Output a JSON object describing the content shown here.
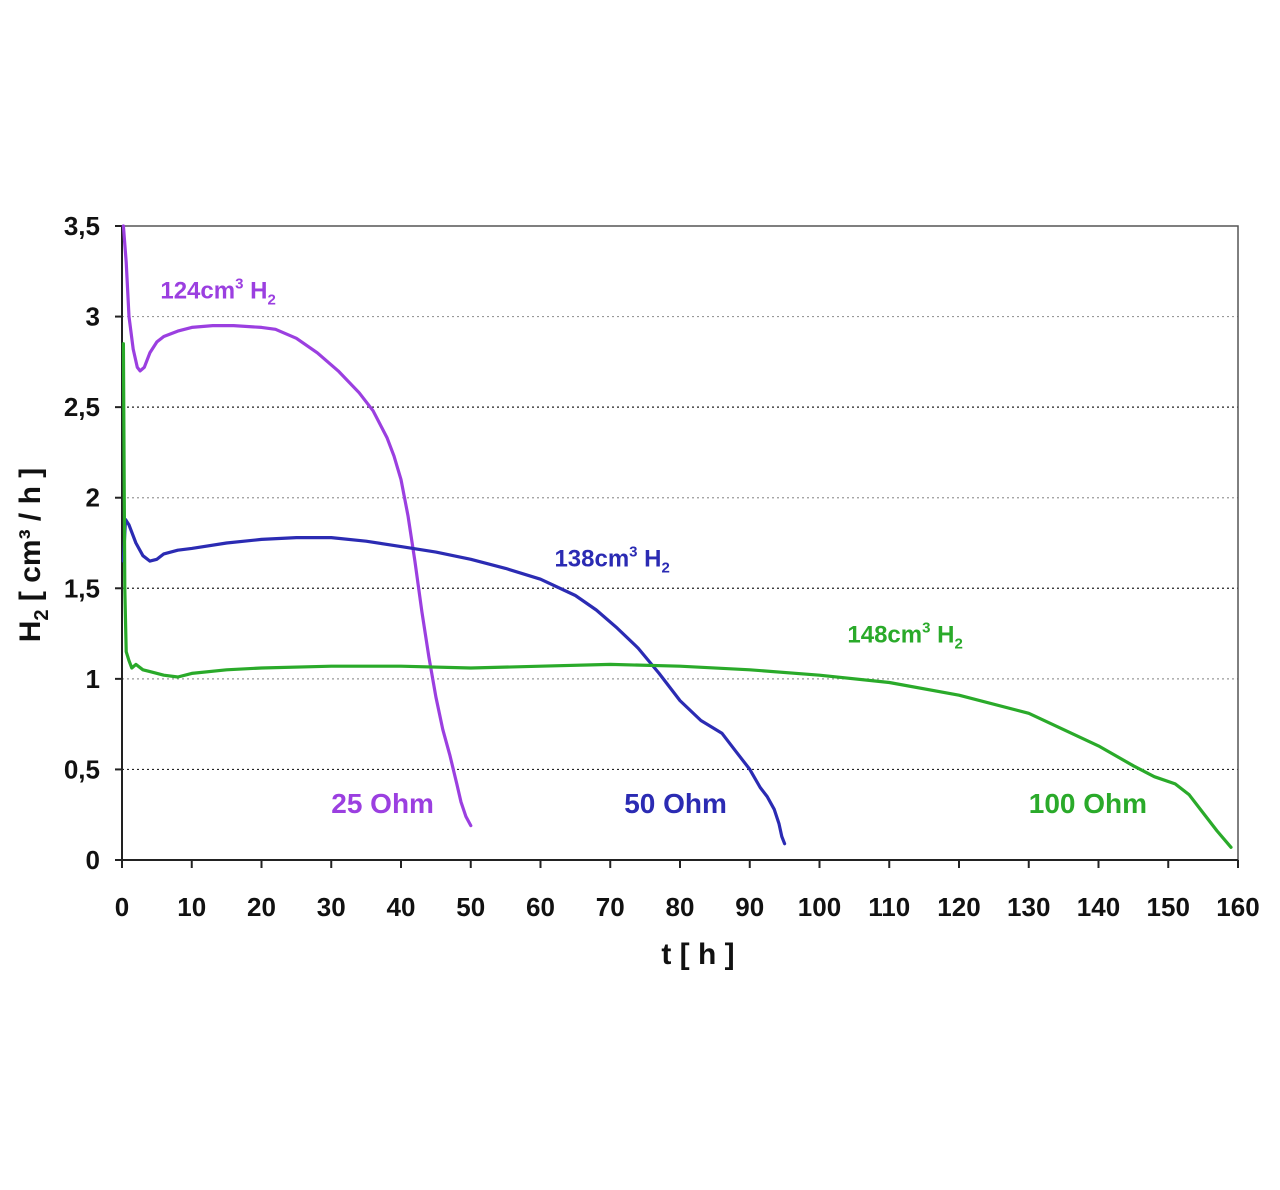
{
  "chart_data": {
    "type": "line",
    "xlabel": "t [ h ]",
    "ylabel_main": "H",
    "ylabel_sub": "2",
    "ylabel_rest": " [ cm³ / h ]",
    "xlim": [
      0,
      160
    ],
    "ylim": [
      0,
      3.5
    ],
    "x_ticks": [
      0,
      10,
      20,
      30,
      40,
      50,
      60,
      70,
      80,
      90,
      100,
      110,
      120,
      130,
      140,
      150,
      160
    ],
    "x_tick_labels": [
      "0",
      "10",
      "20",
      "30",
      "40",
      "50",
      "60",
      "70",
      "80",
      "90",
      "100",
      "110",
      "120",
      "130",
      "140",
      "150",
      "160"
    ],
    "y_ticks": [
      0,
      0.5,
      1,
      1.5,
      2,
      2.5,
      3,
      3.5
    ],
    "y_tick_labels": [
      "0",
      "0,5",
      "1",
      "1,5",
      "2",
      "2,5",
      "3",
      "3,5"
    ],
    "grid": "horizontal dotted",
    "series": [
      {
        "name": "25 Ohm",
        "color": "#9b3fe0",
        "annotation": {
          "main": "124cm",
          "sup": "3",
          "gas": " H",
          "sub": "2",
          "at": [
            5.5,
            3.1
          ]
        },
        "label_at": [
          30,
          0.26
        ],
        "points": [
          [
            0.2,
            3.5
          ],
          [
            0.6,
            3.3
          ],
          [
            1.0,
            3.0
          ],
          [
            1.6,
            2.82
          ],
          [
            2.2,
            2.72
          ],
          [
            2.6,
            2.7
          ],
          [
            3.2,
            2.72
          ],
          [
            4,
            2.8
          ],
          [
            5,
            2.86
          ],
          [
            6,
            2.89
          ],
          [
            8,
            2.92
          ],
          [
            10,
            2.94
          ],
          [
            13,
            2.95
          ],
          [
            16,
            2.95
          ],
          [
            20,
            2.94
          ],
          [
            22,
            2.93
          ],
          [
            25,
            2.88
          ],
          [
            28,
            2.8
          ],
          [
            31,
            2.7
          ],
          [
            34,
            2.58
          ],
          [
            36,
            2.48
          ],
          [
            38,
            2.33
          ],
          [
            39,
            2.23
          ],
          [
            40,
            2.1
          ],
          [
            41,
            1.9
          ],
          [
            42,
            1.65
          ],
          [
            43,
            1.37
          ],
          [
            44,
            1.12
          ],
          [
            45,
            0.9
          ],
          [
            46,
            0.72
          ],
          [
            47,
            0.58
          ],
          [
            48,
            0.42
          ],
          [
            48.6,
            0.32
          ],
          [
            49.3,
            0.24
          ],
          [
            50,
            0.19
          ]
        ]
      },
      {
        "name": "50 Ohm",
        "color": "#2b2bb3",
        "annotation": {
          "main": "138cm",
          "sup": "3",
          "gas": " H",
          "sub": "2",
          "at": [
            62,
            1.62
          ]
        },
        "label_at": [
          72,
          0.26
        ],
        "points": [
          [
            0.2,
            1.65
          ],
          [
            0.5,
            1.88
          ],
          [
            1,
            1.85
          ],
          [
            2,
            1.75
          ],
          [
            3,
            1.68
          ],
          [
            4,
            1.65
          ],
          [
            5,
            1.66
          ],
          [
            6,
            1.69
          ],
          [
            8,
            1.71
          ],
          [
            10,
            1.72
          ],
          [
            15,
            1.75
          ],
          [
            20,
            1.77
          ],
          [
            25,
            1.78
          ],
          [
            30,
            1.78
          ],
          [
            35,
            1.76
          ],
          [
            40,
            1.73
          ],
          [
            45,
            1.7
          ],
          [
            50,
            1.66
          ],
          [
            55,
            1.61
          ],
          [
            60,
            1.55
          ],
          [
            65,
            1.46
          ],
          [
            68,
            1.38
          ],
          [
            71,
            1.28
          ],
          [
            74,
            1.17
          ],
          [
            77,
            1.03
          ],
          [
            80,
            0.88
          ],
          [
            83,
            0.77
          ],
          [
            86,
            0.7
          ],
          [
            88,
            0.6
          ],
          [
            90,
            0.5
          ],
          [
            91.5,
            0.4
          ],
          [
            92.5,
            0.35
          ],
          [
            93.5,
            0.28
          ],
          [
            94.2,
            0.2
          ],
          [
            94.6,
            0.13
          ],
          [
            95,
            0.09
          ]
        ]
      },
      {
        "name": "100 Ohm",
        "color": "#2aaa2a",
        "annotation": {
          "main": "148cm",
          "sup": "3",
          "gas": " H",
          "sub": "2",
          "at": [
            104,
            1.2
          ]
        },
        "label_at": [
          130,
          0.26
        ],
        "points": [
          [
            0.2,
            2.85
          ],
          [
            0.4,
            1.5
          ],
          [
            0.6,
            1.15
          ],
          [
            1,
            1.1
          ],
          [
            1.4,
            1.06
          ],
          [
            2,
            1.08
          ],
          [
            3,
            1.05
          ],
          [
            4,
            1.04
          ],
          [
            6,
            1.02
          ],
          [
            8,
            1.01
          ],
          [
            10,
            1.03
          ],
          [
            15,
            1.05
          ],
          [
            20,
            1.06
          ],
          [
            30,
            1.07
          ],
          [
            40,
            1.07
          ],
          [
            50,
            1.06
          ],
          [
            60,
            1.07
          ],
          [
            70,
            1.08
          ],
          [
            80,
            1.07
          ],
          [
            90,
            1.05
          ],
          [
            100,
            1.02
          ],
          [
            110,
            0.98
          ],
          [
            120,
            0.91
          ],
          [
            130,
            0.81
          ],
          [
            140,
            0.63
          ],
          [
            145,
            0.52
          ],
          [
            148,
            0.46
          ],
          [
            151,
            0.42
          ],
          [
            153,
            0.36
          ],
          [
            155,
            0.26
          ],
          [
            157,
            0.16
          ],
          [
            159,
            0.07
          ]
        ]
      }
    ]
  }
}
